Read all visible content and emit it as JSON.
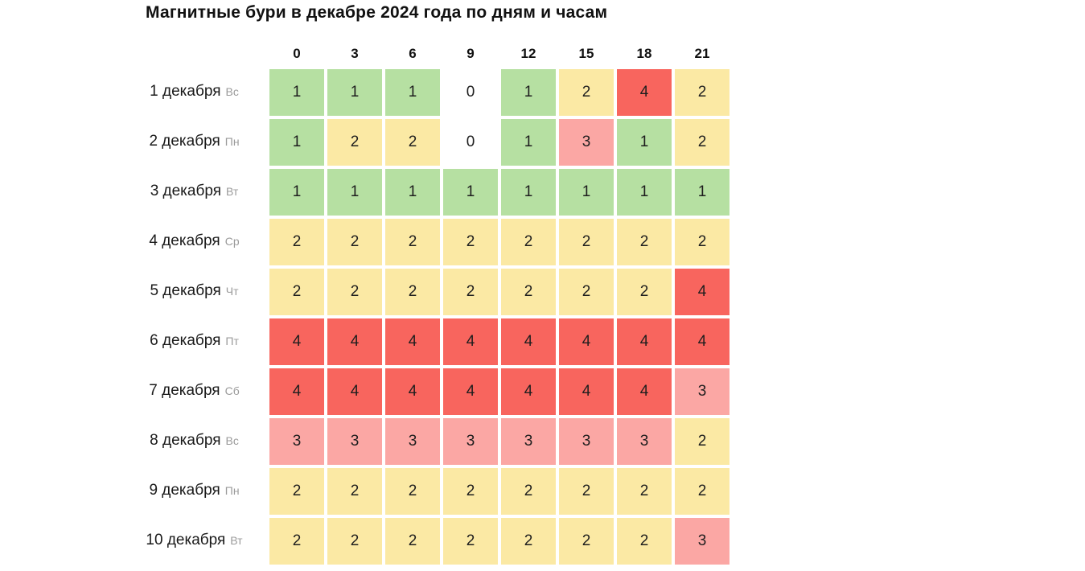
{
  "title": "Магнитные бури в декабре 2024 года по дням и часам",
  "legend_colors": {
    "0": "#ffffff",
    "1": "#b6e0a2",
    "2": "#fbe9a4",
    "3": "#fba7a4",
    "4": "#f8655e"
  },
  "chart_data": {
    "type": "heatmap",
    "title": "Магнитные бури в декабре 2024 года по дням и часам",
    "x_ticks": [
      "0",
      "3",
      "6",
      "9",
      "12",
      "15",
      "18",
      "21"
    ],
    "x_unit": "часы",
    "value_range": [
      0,
      4
    ],
    "color_scale": {
      "0": "#ffffff",
      "1": "#b6e0a2",
      "2": "#fbe9a4",
      "3": "#fba7a4",
      "4": "#f8655e"
    },
    "rows": [
      {
        "date": "1 декабря",
        "weekday": "Вс",
        "values": [
          1,
          1,
          1,
          0,
          1,
          2,
          4,
          2
        ]
      },
      {
        "date": "2 декабря",
        "weekday": "Пн",
        "values": [
          1,
          2,
          2,
          0,
          1,
          3,
          1,
          2
        ]
      },
      {
        "date": "3 декабря",
        "weekday": "Вт",
        "values": [
          1,
          1,
          1,
          1,
          1,
          1,
          1,
          1
        ]
      },
      {
        "date": "4 декабря",
        "weekday": "Ср",
        "values": [
          2,
          2,
          2,
          2,
          2,
          2,
          2,
          2
        ]
      },
      {
        "date": "5 декабря",
        "weekday": "Чт",
        "values": [
          2,
          2,
          2,
          2,
          2,
          2,
          2,
          4
        ]
      },
      {
        "date": "6 декабря",
        "weekday": "Пт",
        "values": [
          4,
          4,
          4,
          4,
          4,
          4,
          4,
          4
        ]
      },
      {
        "date": "7 декабря",
        "weekday": "Сб",
        "values": [
          4,
          4,
          4,
          4,
          4,
          4,
          4,
          3
        ]
      },
      {
        "date": "8 декабря",
        "weekday": "Вс",
        "values": [
          3,
          3,
          3,
          3,
          3,
          3,
          3,
          2
        ]
      },
      {
        "date": "9 декабря",
        "weekday": "Пн",
        "values": [
          2,
          2,
          2,
          2,
          2,
          2,
          2,
          2
        ]
      },
      {
        "date": "10 декабря",
        "weekday": "Вт",
        "values": [
          2,
          2,
          2,
          2,
          2,
          2,
          2,
          3
        ]
      }
    ]
  }
}
